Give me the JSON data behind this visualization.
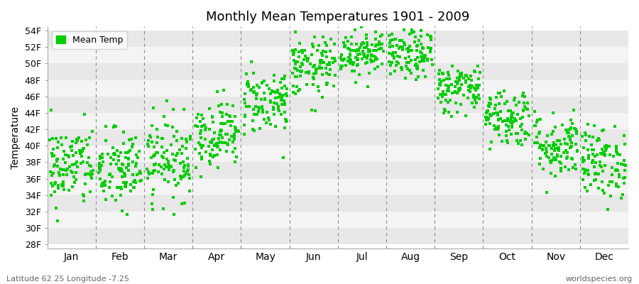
{
  "title": "Monthly Mean Temperatures 1901 - 2009",
  "ylabel": "Temperature",
  "xlabel_months": [
    "Jan",
    "Feb",
    "Mar",
    "Apr",
    "May",
    "Jun",
    "Jul",
    "Aug",
    "Sep",
    "Oct",
    "Nov",
    "Dec"
  ],
  "ytick_labels": [
    "28F",
    "30F",
    "32F",
    "34F",
    "36F",
    "38F",
    "40F",
    "42F",
    "44F",
    "46F",
    "48F",
    "50F",
    "52F",
    "54F"
  ],
  "ytick_values": [
    28,
    30,
    32,
    34,
    36,
    38,
    40,
    42,
    44,
    46,
    48,
    50,
    52,
    54
  ],
  "ylim": [
    27.5,
    54.5
  ],
  "legend_label": "Mean Temp",
  "marker_color": "#00CC00",
  "marker": "s",
  "marker_size": 2.5,
  "background_color": "#ffffff",
  "band_color_dark": "#e8e8e8",
  "band_color_light": "#f4f4f4",
  "subtitle_left": "Latitude 62.25 Longitude -7.25",
  "subtitle_right": "worldspecies.org",
  "n_years": 109,
  "monthly_means": [
    37.5,
    37.0,
    38.5,
    41.5,
    45.5,
    49.5,
    51.5,
    51.0,
    47.0,
    43.5,
    40.0,
    38.0
  ],
  "monthly_stds": [
    2.5,
    2.5,
    2.5,
    2.0,
    2.0,
    1.8,
    1.5,
    1.5,
    1.5,
    1.8,
    2.0,
    2.2
  ],
  "seed": 42
}
